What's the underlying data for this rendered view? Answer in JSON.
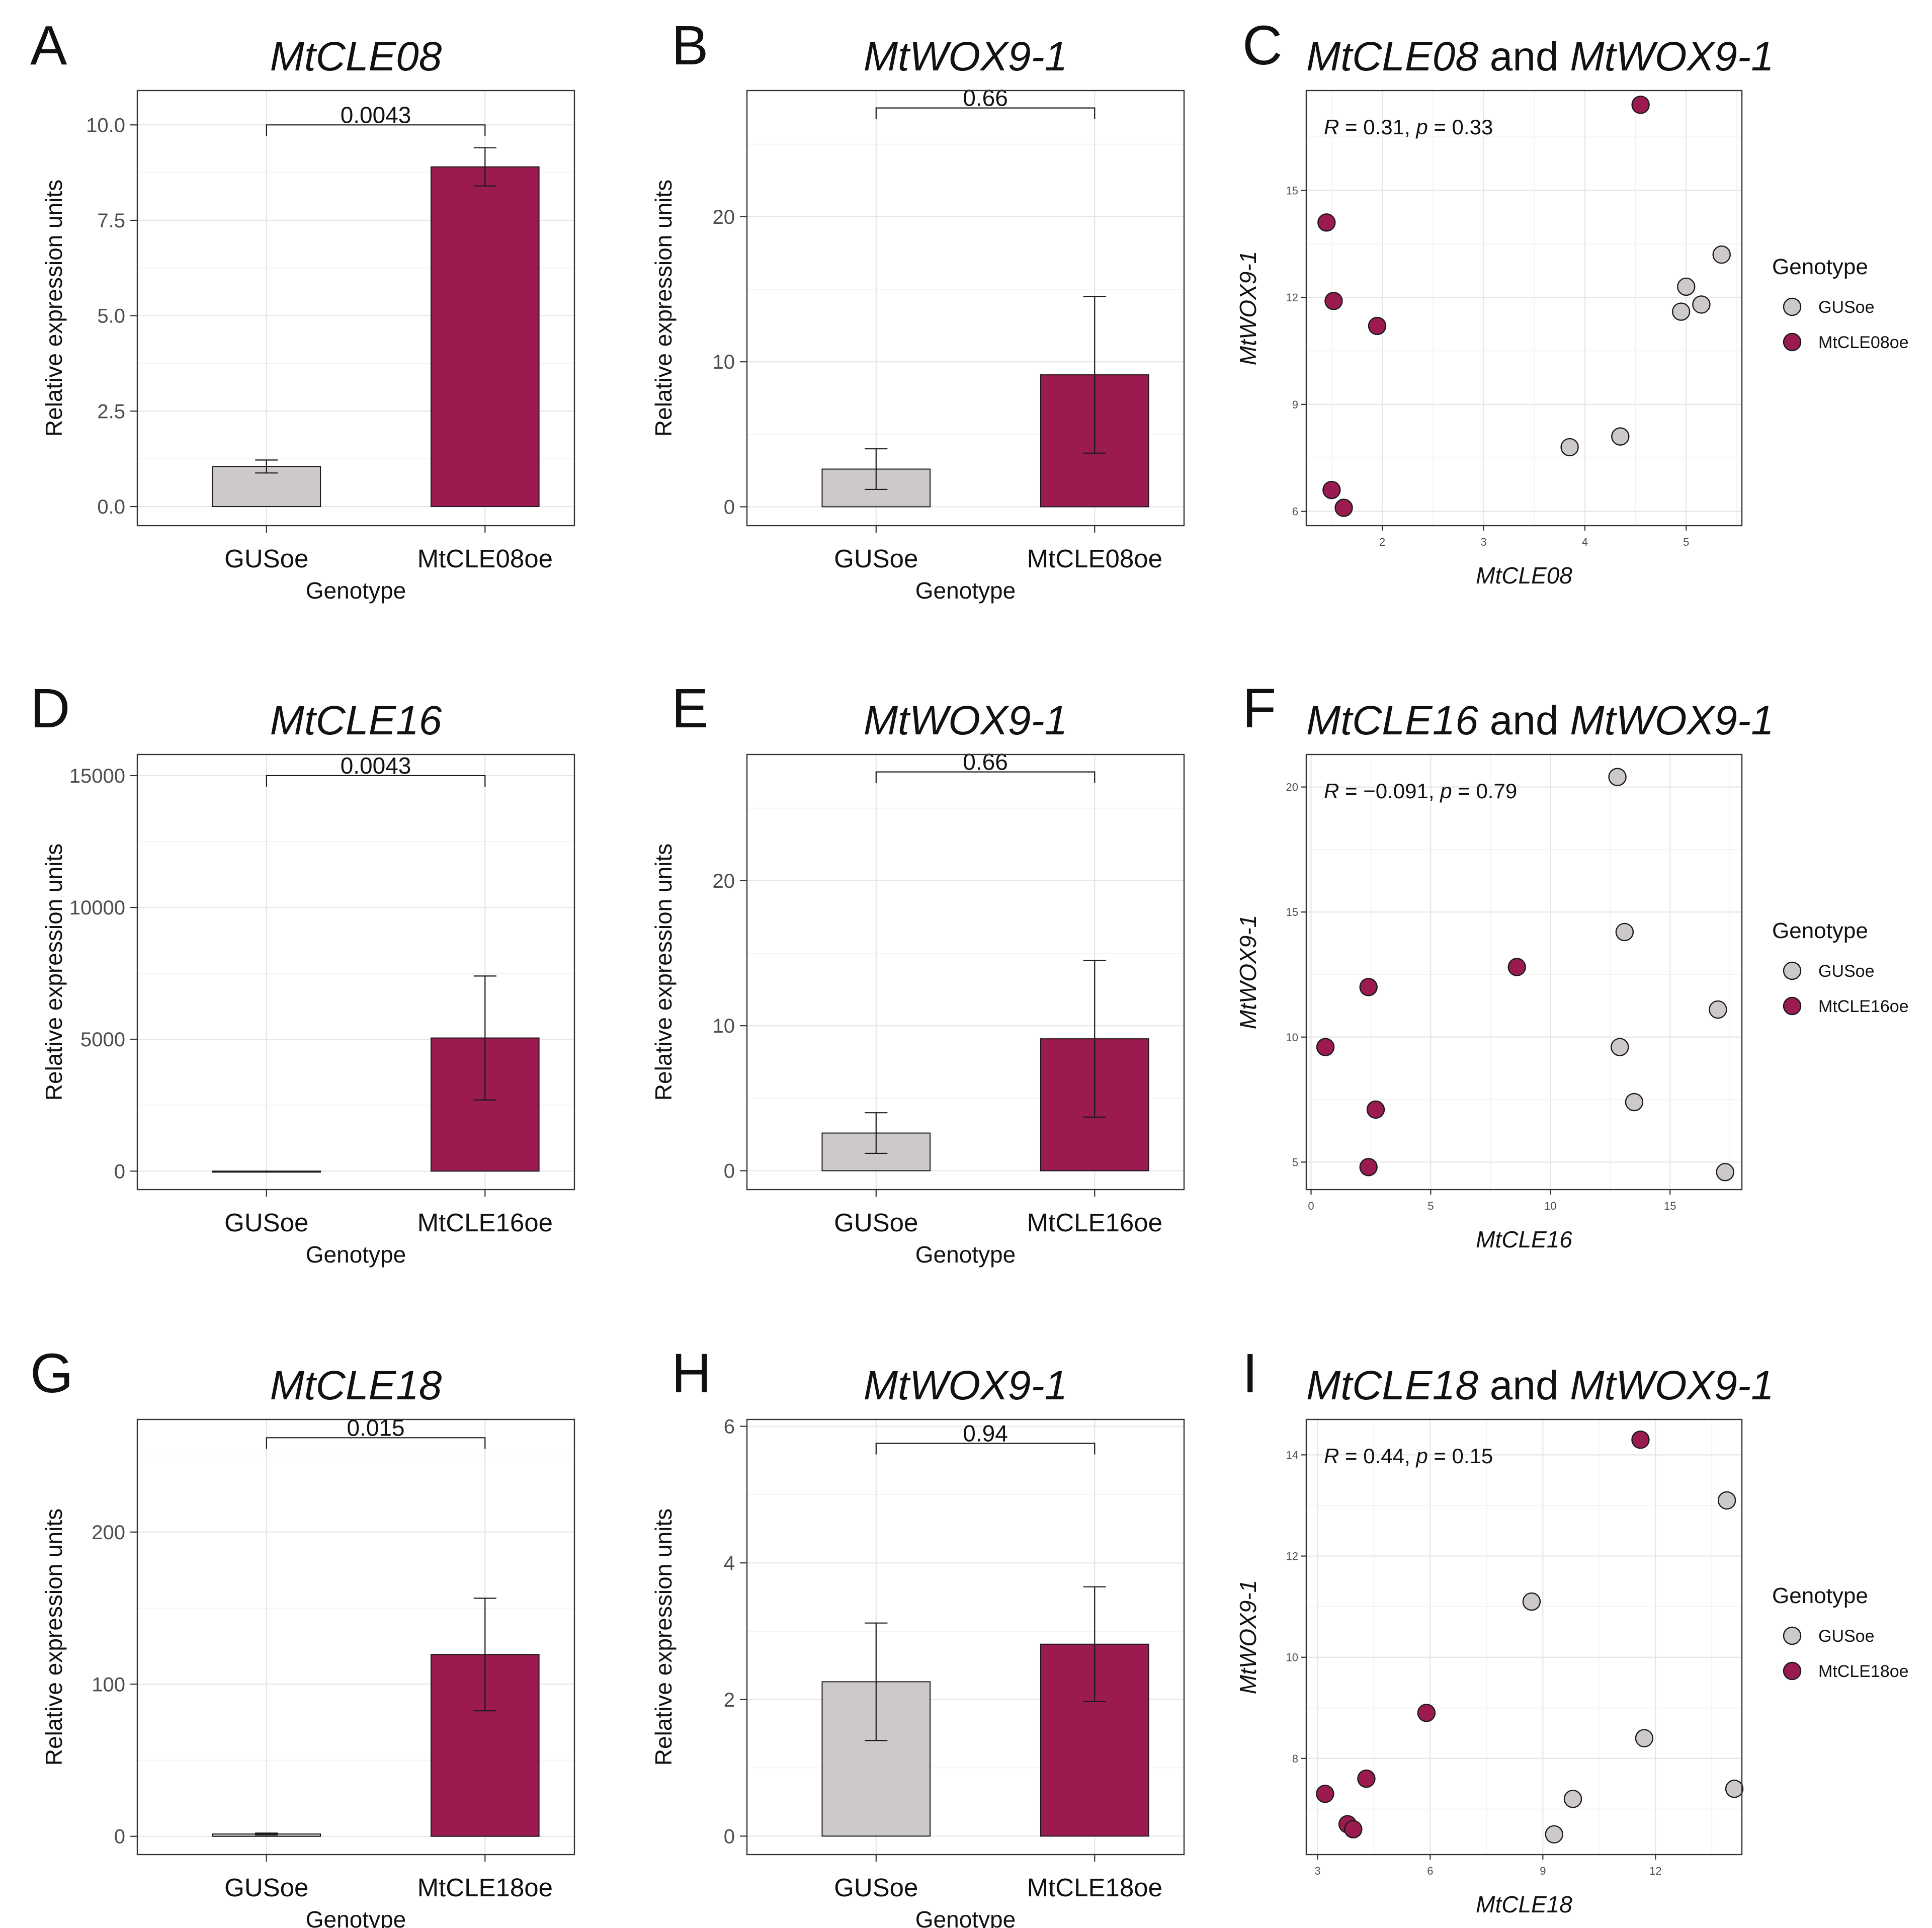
{
  "legend_title": "Genotype",
  "colors": {
    "control": "#cdc8ca",
    "overexpression": "#9b1b50",
    "outline": "#1a1a1a"
  },
  "chart_data": [
    {
      "panel": "A",
      "type": "bar",
      "title": "MtCLE08",
      "xlabel": "Genotype",
      "ylabel": "Relative expression units",
      "categories": [
        "GUSoe",
        "MtCLE08oe"
      ],
      "values": [
        1.05,
        8.9
      ],
      "errors": [
        0.17,
        0.5
      ],
      "ylim": [
        -0.5,
        10.9
      ],
      "yticks": [
        0,
        2.5,
        5,
        7.5,
        10
      ],
      "ytick_labels": [
        "0.0",
        "2.5",
        "5.0",
        "7.5",
        "10.0"
      ],
      "pvalue": "0.0043",
      "bracket_y": 10.0
    },
    {
      "panel": "B",
      "type": "bar",
      "title": "MtWOX9-1",
      "xlabel": "Genotype",
      "ylabel": "Relative expression units",
      "categories": [
        "GUSoe",
        "MtCLE08oe"
      ],
      "values": [
        2.6,
        9.1
      ],
      "errors": [
        1.4,
        5.4
      ],
      "ylim": [
        -1.3,
        28.7
      ],
      "yticks": [
        0,
        10,
        20
      ],
      "ytick_labels": [
        "0",
        "10",
        "20"
      ],
      "pvalue": "0.66",
      "bracket_y": 27.5
    },
    {
      "panel": "C",
      "type": "scatter",
      "title_parts": [
        "MtCLE08",
        " and ",
        "MtWOX9-1"
      ],
      "xlabel": "MtCLE08",
      "ylabel": "MtWOX9-1",
      "xlim": [
        1.25,
        5.55
      ],
      "ylim": [
        5.6,
        17.8
      ],
      "xticks": [
        2,
        3,
        4,
        5
      ],
      "yticks": [
        6,
        9,
        12,
        15
      ],
      "stat": {
        "r_value": "0.31",
        "p_value": "0.33"
      },
      "legend": [
        "GUSoe",
        "MtCLE08oe"
      ],
      "series": [
        {
          "name": "GUSoe",
          "points": [
            [
              5.35,
              13.2
            ],
            [
              5.0,
              12.3
            ],
            [
              5.15,
              11.8
            ],
            [
              4.95,
              11.6
            ],
            [
              3.85,
              7.8
            ],
            [
              4.35,
              8.1
            ]
          ]
        },
        {
          "name": "MtCLE08oe",
          "points": [
            [
              4.55,
              17.4
            ],
            [
              1.45,
              14.1
            ],
            [
              1.52,
              11.9
            ],
            [
              1.95,
              11.2
            ],
            [
              1.5,
              6.6
            ],
            [
              1.62,
              6.1
            ]
          ]
        }
      ]
    },
    {
      "panel": "D",
      "type": "bar",
      "title": "MtCLE16",
      "xlabel": "Genotype",
      "ylabel": "Relative expression units",
      "categories": [
        "GUSoe",
        "MtCLE16oe"
      ],
      "values": [
        1,
        5050
      ],
      "errors": [
        0,
        2350
      ],
      "ylim": [
        -700,
        15800
      ],
      "yticks": [
        0,
        5000,
        10000,
        15000
      ],
      "ytick_labels": [
        "0",
        "5000",
        "10000",
        "15000"
      ],
      "pvalue": "0.0043",
      "bracket_y": 15000
    },
    {
      "panel": "E",
      "type": "bar",
      "title": "MtWOX9-1",
      "xlabel": "Genotype",
      "ylabel": "Relative expression units",
      "categories": [
        "GUSoe",
        "MtCLE16oe"
      ],
      "values": [
        2.6,
        9.1
      ],
      "errors": [
        1.4,
        5.4
      ],
      "ylim": [
        -1.3,
        28.7
      ],
      "yticks": [
        0,
        10,
        20
      ],
      "ytick_labels": [
        "0",
        "10",
        "20"
      ],
      "pvalue": "0.66",
      "bracket_y": 27.5
    },
    {
      "panel": "F",
      "type": "scatter",
      "title_parts": [
        "MtCLE16",
        " and ",
        "MtWOX9-1"
      ],
      "xlabel": "MtCLE16",
      "ylabel": "MtWOX9-1",
      "xlim": [
        -0.2,
        18.0
      ],
      "ylim": [
        3.9,
        21.3
      ],
      "xticks": [
        0,
        5,
        10,
        15
      ],
      "yticks": [
        5,
        10,
        15,
        20
      ],
      "stat": {
        "r_value": "−0.091",
        "p_value": "0.79"
      },
      "legend": [
        "GUSoe",
        "MtCLE16oe"
      ],
      "series": [
        {
          "name": "GUSoe",
          "points": [
            [
              12.8,
              20.4
            ],
            [
              13.1,
              14.2
            ],
            [
              17.0,
              11.1
            ],
            [
              12.9,
              9.6
            ],
            [
              13.5,
              7.4
            ],
            [
              17.3,
              4.6
            ]
          ]
        },
        {
          "name": "MtCLE16oe",
          "points": [
            [
              8.6,
              12.8
            ],
            [
              2.4,
              12.0
            ],
            [
              0.6,
              9.6
            ],
            [
              2.7,
              7.1
            ],
            [
              2.4,
              4.8
            ]
          ]
        }
      ]
    },
    {
      "panel": "G",
      "type": "bar",
      "title": "MtCLE18",
      "xlabel": "Genotype",
      "ylabel": "Relative expression units",
      "categories": [
        "GUSoe",
        "MtCLE18oe"
      ],
      "values": [
        1.5,
        119.5
      ],
      "errors": [
        0.6,
        37
      ],
      "ylim": [
        -12,
        274
      ],
      "yticks": [
        0,
        100,
        200
      ],
      "ytick_labels": [
        "0",
        "100",
        "200"
      ],
      "pvalue": "0.015",
      "bracket_y": 262
    },
    {
      "panel": "H",
      "type": "bar",
      "title": "MtWOX9-1",
      "xlabel": "Genotype",
      "ylabel": "Relative expression units",
      "categories": [
        "GUSoe",
        "MtCLE18oe"
      ],
      "values": [
        2.26,
        2.81
      ],
      "errors": [
        0.86,
        0.84
      ],
      "ylim": [
        -0.27,
        6.1
      ],
      "yticks": [
        0,
        2,
        4,
        6
      ],
      "ytick_labels": [
        "0",
        "2",
        "4",
        "6"
      ],
      "pvalue": "0.94",
      "bracket_y": 5.75
    },
    {
      "panel": "I",
      "type": "scatter",
      "title_parts": [
        "MtCLE18",
        " and ",
        "MtWOX9-1"
      ],
      "xlabel": "MtCLE18",
      "ylabel": "MtWOX9-1",
      "xlim": [
        2.7,
        14.3
      ],
      "ylim": [
        6.1,
        14.7
      ],
      "xticks": [
        3,
        6,
        9,
        12
      ],
      "yticks": [
        8,
        10,
        12,
        14
      ],
      "stat": {
        "r_value": "0.44",
        "p_value": "0.15"
      },
      "legend": [
        "GUSoe",
        "MtCLE18oe"
      ],
      "series": [
        {
          "name": "GUSoe",
          "points": [
            [
              13.9,
              13.1
            ],
            [
              8.7,
              11.1
            ],
            [
              11.7,
              8.4
            ],
            [
              14.1,
              7.4
            ],
            [
              9.8,
              7.2
            ],
            [
              9.3,
              6.5
            ]
          ]
        },
        {
          "name": "MtCLE18oe",
          "points": [
            [
              11.6,
              14.3
            ],
            [
              5.9,
              8.9
            ],
            [
              4.3,
              7.6
            ],
            [
              3.2,
              7.3
            ],
            [
              3.8,
              6.7
            ],
            [
              3.95,
              6.6
            ]
          ]
        }
      ]
    }
  ]
}
